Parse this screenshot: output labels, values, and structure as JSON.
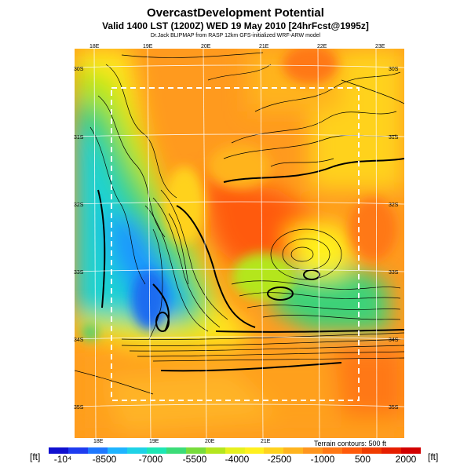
{
  "title": "OvercastDevelopment Potential",
  "subtitle": "Valid 1400 LST (1200Z) WED 19 May 2010 [24hrFcst@1995z]",
  "credit": "Dr.Jack BLIPMAP from RASP 12km GFS-initialized WRF-ARW model",
  "lon_top": [
    "18E",
    "19E",
    "20E",
    "21E",
    "22E",
    "23E"
  ],
  "lon_bottom": [
    "18E",
    "19E",
    "20E",
    "21E"
  ],
  "lat_left": [
    "30S",
    "31S",
    "32S",
    "33S",
    "34S",
    "35S"
  ],
  "lat_right": [
    "30S",
    "31S",
    "32S",
    "33S",
    "34S",
    "35S"
  ],
  "terrain_note": "Terrain contours: 500 ft",
  "legend": {
    "unit_left": "[ft]",
    "unit_right": "[ft]",
    "ticks": [
      "-10⁴",
      "-8500",
      "-7000",
      "-5500",
      "-4000",
      "-2500",
      "-1000",
      "500",
      "2000"
    ],
    "colors": [
      "#1010d0",
      "#1e3cf0",
      "#1e78ff",
      "#1eb4ff",
      "#1ed2e6",
      "#1ee6b4",
      "#3cdc78",
      "#78dc3c",
      "#b4e61e",
      "#e6f01e",
      "#fff01e",
      "#ffd21e",
      "#ffb41e",
      "#ff961e",
      "#ff7814",
      "#ff5a0a",
      "#f03c00",
      "#e61e00",
      "#d20000"
    ]
  }
}
